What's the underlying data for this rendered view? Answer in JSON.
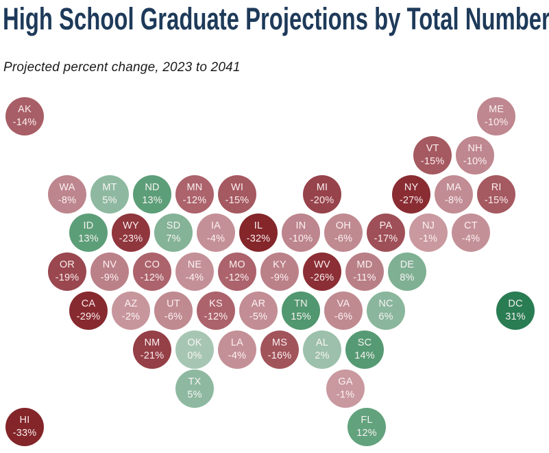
{
  "header": {
    "title": "High School Graduate Projections by Total Number",
    "subtitle": "Projected percent change, 2023 to 2041"
  },
  "theme": {
    "background": "#FFFFFF",
    "title_color": "#1E3A5A",
    "subtitle_color": "#1A1A1A",
    "tile_text_color": "#FFF8F8",
    "negative_dark": "#832529",
    "negative_light": "#C9999F",
    "positive_light": "#A6C6B3",
    "positive_dark": "#2A7C53"
  },
  "chart_data": {
    "type": "heatmap",
    "layout": "us-tile-cartogram",
    "title": "High School Graduate Projections by Total Number",
    "subtitle": "Projected percent change, 2023 to 2041",
    "value_unit": "%",
    "value_range": [
      -33,
      31
    ],
    "legend": "none",
    "states": [
      {
        "abbr": "AK",
        "value": -14,
        "label": "-14%",
        "color": "#A85E66",
        "col": 0,
        "row": 0
      },
      {
        "abbr": "ME",
        "value": -10,
        "label": "-10%",
        "color": "#BF878F",
        "col": 22.2,
        "row": 0
      },
      {
        "abbr": "VT",
        "value": -15,
        "label": "-15%",
        "color": "#A55960",
        "col": 19.2,
        "row": 1
      },
      {
        "abbr": "NH",
        "value": -10,
        "label": "-10%",
        "color": "#BF878F",
        "col": 21.2,
        "row": 1
      },
      {
        "abbr": "WA",
        "value": -8,
        "label": "-8%",
        "color": "#BD858D",
        "col": 2,
        "row": 2
      },
      {
        "abbr": "MT",
        "value": 5,
        "label": "5%",
        "color": "#8EB9A0",
        "col": 4,
        "row": 2
      },
      {
        "abbr": "ND",
        "value": 13,
        "label": "13%",
        "color": "#5C9E78",
        "col": 6,
        "row": 2
      },
      {
        "abbr": "MN",
        "value": -12,
        "label": "-12%",
        "color": "#AC636C",
        "col": 8,
        "row": 2
      },
      {
        "abbr": "WI",
        "value": -15,
        "label": "-15%",
        "color": "#A55960",
        "col": 10,
        "row": 2
      },
      {
        "abbr": "MI",
        "value": -20,
        "label": "-20%",
        "color": "#97434B",
        "col": 14,
        "row": 2
      },
      {
        "abbr": "NY",
        "value": -27,
        "label": "-27%",
        "color": "#892D33",
        "col": 18.2,
        "row": 2
      },
      {
        "abbr": "MA",
        "value": -8,
        "label": "-8%",
        "color": "#C18C93",
        "col": 20.2,
        "row": 2
      },
      {
        "abbr": "RI",
        "value": -15,
        "label": "-15%",
        "color": "#A55960",
        "col": 22.2,
        "row": 2
      },
      {
        "abbr": "ID",
        "value": 13,
        "label": "13%",
        "color": "#5C9E78",
        "col": 3,
        "row": 3
      },
      {
        "abbr": "WY",
        "value": -23,
        "label": "-23%",
        "color": "#90363D",
        "col": 5,
        "row": 3
      },
      {
        "abbr": "SD",
        "value": 7,
        "label": "7%",
        "color": "#84B397",
        "col": 7,
        "row": 3
      },
      {
        "abbr": "IA",
        "value": -4,
        "label": "-4%",
        "color": "#C49097",
        "col": 9,
        "row": 3
      },
      {
        "abbr": "IL",
        "value": -32,
        "label": "-32%",
        "color": "#84262A",
        "col": 11,
        "row": 3
      },
      {
        "abbr": "IN",
        "value": -10,
        "label": "-10%",
        "color": "#BD858D",
        "col": 13,
        "row": 3
      },
      {
        "abbr": "OH",
        "value": -6,
        "label": "-6%",
        "color": "#C08A91",
        "col": 15,
        "row": 3
      },
      {
        "abbr": "PA",
        "value": -17,
        "label": "-17%",
        "color": "#9F4F57",
        "col": 17,
        "row": 3
      },
      {
        "abbr": "NJ",
        "value": -1,
        "label": "-1%",
        "color": "#C9999F",
        "col": 19,
        "row": 3
      },
      {
        "abbr": "CT",
        "value": -4,
        "label": "-4%",
        "color": "#C49097",
        "col": 21,
        "row": 3
      },
      {
        "abbr": "OR",
        "value": -19,
        "label": "-19%",
        "color": "#9A474F",
        "col": 2,
        "row": 4
      },
      {
        "abbr": "NV",
        "value": -9,
        "label": "-9%",
        "color": "#BB8189",
        "col": 4,
        "row": 4
      },
      {
        "abbr": "CO",
        "value": -12,
        "label": "-12%",
        "color": "#AC636C",
        "col": 6,
        "row": 4
      },
      {
        "abbr": "NE",
        "value": -4,
        "label": "-4%",
        "color": "#C49097",
        "col": 8,
        "row": 4
      },
      {
        "abbr": "MO",
        "value": -12,
        "label": "-12%",
        "color": "#AC636C",
        "col": 10,
        "row": 4
      },
      {
        "abbr": "KY",
        "value": -9,
        "label": "-9%",
        "color": "#BB8189",
        "col": 12,
        "row": 4
      },
      {
        "abbr": "WV",
        "value": -26,
        "label": "-26%",
        "color": "#8B2E35",
        "col": 14,
        "row": 4
      },
      {
        "abbr": "MD",
        "value": -11,
        "label": "-11%",
        "color": "#B97F87",
        "col": 16,
        "row": 4
      },
      {
        "abbr": "DE",
        "value": 8,
        "label": "8%",
        "color": "#7FB093",
        "col": 18,
        "row": 4
      },
      {
        "abbr": "CA",
        "value": -29,
        "label": "-29%",
        "color": "#872A30",
        "col": 3,
        "row": 5
      },
      {
        "abbr": "AZ",
        "value": -2,
        "label": "-2%",
        "color": "#C7969C",
        "col": 5,
        "row": 5
      },
      {
        "abbr": "UT",
        "value": -6,
        "label": "-6%",
        "color": "#C08A91",
        "col": 7,
        "row": 5
      },
      {
        "abbr": "KS",
        "value": -12,
        "label": "-12%",
        "color": "#AC636C",
        "col": 9,
        "row": 5
      },
      {
        "abbr": "AR",
        "value": -5,
        "label": "-5%",
        "color": "#C28D94",
        "col": 11,
        "row": 5
      },
      {
        "abbr": "TN",
        "value": 15,
        "label": "15%",
        "color": "#51976F",
        "col": 13,
        "row": 5
      },
      {
        "abbr": "VA",
        "value": -6,
        "label": "-6%",
        "color": "#C08A91",
        "col": 15,
        "row": 5
      },
      {
        "abbr": "NC",
        "value": 6,
        "label": "6%",
        "color": "#89B69C",
        "col": 17,
        "row": 5
      },
      {
        "abbr": "DC",
        "value": 31,
        "label": "31%",
        "color": "#2A7C53",
        "col": 23.1,
        "row": 5
      },
      {
        "abbr": "NM",
        "value": -21,
        "label": "-21%",
        "color": "#953F47",
        "col": 6,
        "row": 6
      },
      {
        "abbr": "OK",
        "value": 0,
        "label": "0%",
        "color": "#A6C6B3",
        "col": 8,
        "row": 6
      },
      {
        "abbr": "LA",
        "value": -4,
        "label": "-4%",
        "color": "#C49097",
        "col": 10,
        "row": 6
      },
      {
        "abbr": "MS",
        "value": -16,
        "label": "-16%",
        "color": "#A2545B",
        "col": 12,
        "row": 6
      },
      {
        "abbr": "AL",
        "value": 2,
        "label": "2%",
        "color": "#9CC0AB",
        "col": 14,
        "row": 6
      },
      {
        "abbr": "SC",
        "value": 14,
        "label": "14%",
        "color": "#569A73",
        "col": 16,
        "row": 6
      },
      {
        "abbr": "TX",
        "value": 5,
        "label": "5%",
        "color": "#8EB9A0",
        "col": 8,
        "row": 7
      },
      {
        "abbr": "GA",
        "value": -1,
        "label": "-1%",
        "color": "#C9999F",
        "col": 15.1,
        "row": 7
      },
      {
        "abbr": "HI",
        "value": -33,
        "label": "-33%",
        "color": "#832529",
        "col": 0,
        "row": 8
      },
      {
        "abbr": "FL",
        "value": 12,
        "label": "12%",
        "color": "#62A27D",
        "col": 16.1,
        "row": 8
      }
    ]
  }
}
